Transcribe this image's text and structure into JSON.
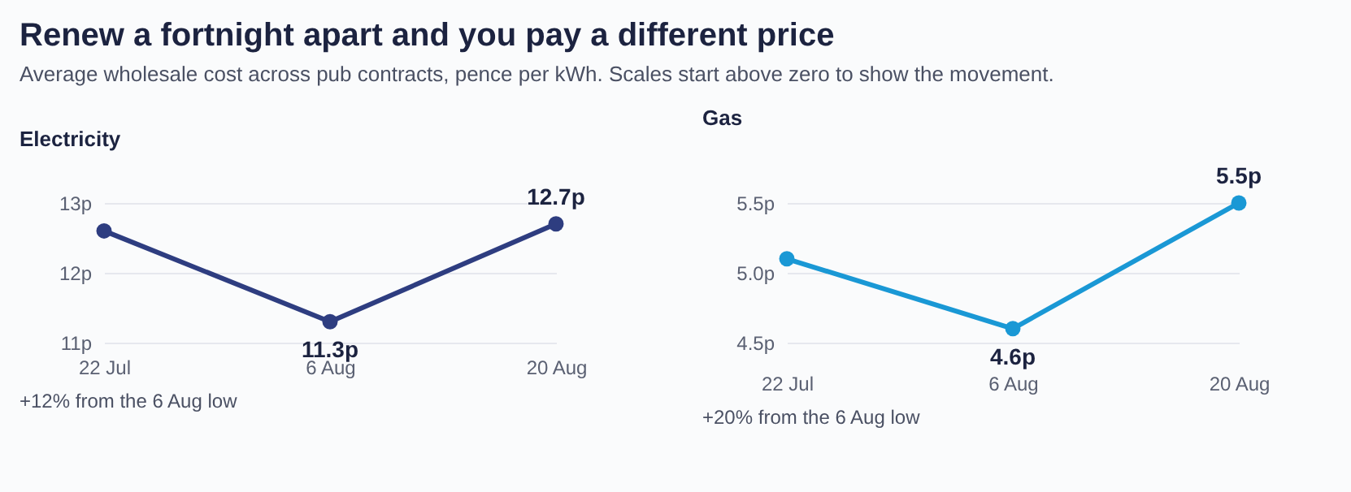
{
  "chart_data": [
    {
      "type": "line",
      "title": "Renew a fortnight apart and you pay a different price",
      "subtitle": "Average wholesale cost across pub contracts, pence per kWh. Scales start above zero to show the movement.",
      "categories": [
        "22 Jul",
        "6 Aug",
        "20 Aug"
      ],
      "series": [
        {
          "name": "Electricity",
          "color": "#2e3d80",
          "values": [
            12.6,
            11.3,
            12.7
          ],
          "value_labels": [
            null,
            "11.3p",
            "12.7p"
          ]
        }
      ],
      "ylim": [
        11,
        13
      ],
      "yticks": [
        {
          "value": 11,
          "label": "11p"
        },
        {
          "value": 12,
          "label": "12p"
        },
        {
          "value": 13,
          "label": "13p"
        }
      ],
      "grid": "y",
      "marker": "circle",
      "line_style": "solid",
      "annotations": [
        "+12% from the 6 Aug low"
      ]
    },
    {
      "type": "line",
      "categories": [
        "22 Jul",
        "6 Aug",
        "20 Aug"
      ],
      "series": [
        {
          "name": "Gas",
          "color": "#1a98d5",
          "values": [
            5.1,
            4.6,
            5.5
          ],
          "value_labels": [
            null,
            "4.6p",
            "5.5p"
          ]
        }
      ],
      "ylim": [
        4.5,
        5.5
      ],
      "yticks": [
        {
          "value": 4.5,
          "label": "4.5p"
        },
        {
          "value": 5.0,
          "label": "5.0p"
        },
        {
          "value": 5.5,
          "label": "5.5p"
        }
      ],
      "grid": "y",
      "marker": "circle",
      "line_style": "solid",
      "annotations": [
        "+20% from the 6 Aug low"
      ]
    }
  ]
}
